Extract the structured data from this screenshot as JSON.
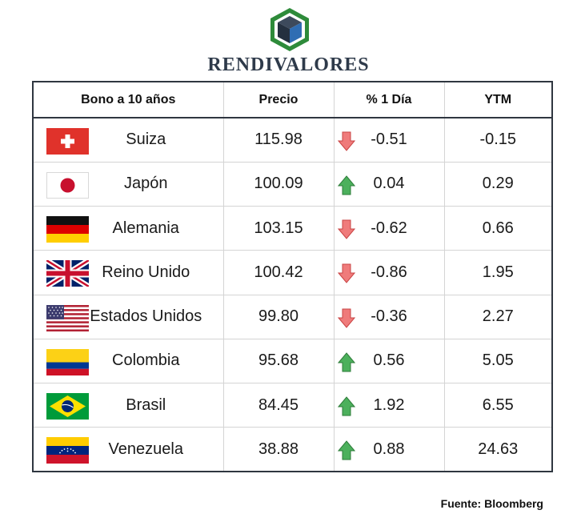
{
  "brand": {
    "name": "RENDIVALORES",
    "logo_icon": "green-hexagon-cube-logo",
    "colors": {
      "logo_green": "#2e8b3a",
      "cube_navy": "#2e3a4a",
      "cube_blue": "#2f6db3"
    }
  },
  "table": {
    "headers": {
      "bond": "Bono a 10 años",
      "price": "Precio",
      "change": "% 1 Día",
      "ytm": "YTM"
    },
    "rows": [
      {
        "country": "Suiza",
        "flag_icon": "switzerland-flag-icon",
        "price": "115.98",
        "change": "-0.51",
        "direction": "down",
        "ytm": "-0.15"
      },
      {
        "country": "Japón",
        "flag_icon": "japan-flag-icon",
        "price": "100.09",
        "change": "0.04",
        "direction": "up",
        "ytm": "0.29"
      },
      {
        "country": "Alemania",
        "flag_icon": "germany-flag-icon",
        "price": "103.15",
        "change": "-0.62",
        "direction": "down",
        "ytm": "0.66"
      },
      {
        "country": "Reino Unido",
        "flag_icon": "united-kingdom-flag-icon",
        "price": "100.42",
        "change": "-0.86",
        "direction": "down",
        "ytm": "1.95"
      },
      {
        "country": "Estados Unidos",
        "flag_icon": "united-states-flag-icon",
        "price": "99.80",
        "change": "-0.36",
        "direction": "down",
        "ytm": "2.27"
      },
      {
        "country": "Colombia",
        "flag_icon": "colombia-flag-icon",
        "price": "95.68",
        "change": "0.56",
        "direction": "up",
        "ytm": "5.05"
      },
      {
        "country": "Brasil",
        "flag_icon": "brazil-flag-icon",
        "price": "84.45",
        "change": "1.92",
        "direction": "up",
        "ytm": "6.55"
      },
      {
        "country": "Venezuela",
        "flag_icon": "venezuela-flag-icon",
        "price": "38.88",
        "change": "0.88",
        "direction": "up",
        "ytm": "24.63"
      }
    ],
    "colors": {
      "up_arrow": "#3aa34a",
      "down_arrow": "#e05a5a",
      "border": "#2f3640"
    }
  },
  "source": "Fuente: Bloomberg",
  "chart_data": {
    "type": "table",
    "columns": [
      "Bono a 10 años",
      "Precio",
      "% 1 Día",
      "YTM"
    ],
    "rows": [
      [
        "Suiza",
        115.98,
        -0.51,
        -0.15
      ],
      [
        "Japón",
        100.09,
        0.04,
        0.29
      ],
      [
        "Alemania",
        103.15,
        -0.62,
        0.66
      ],
      [
        "Reino Unido",
        100.42,
        -0.86,
        1.95
      ],
      [
        "Estados Unidos",
        99.8,
        -0.36,
        2.27
      ],
      [
        "Colombia",
        95.68,
        0.56,
        5.05
      ],
      [
        "Brasil",
        84.45,
        1.92,
        6.55
      ],
      [
        "Venezuela",
        38.88,
        0.88,
        24.63
      ]
    ]
  }
}
